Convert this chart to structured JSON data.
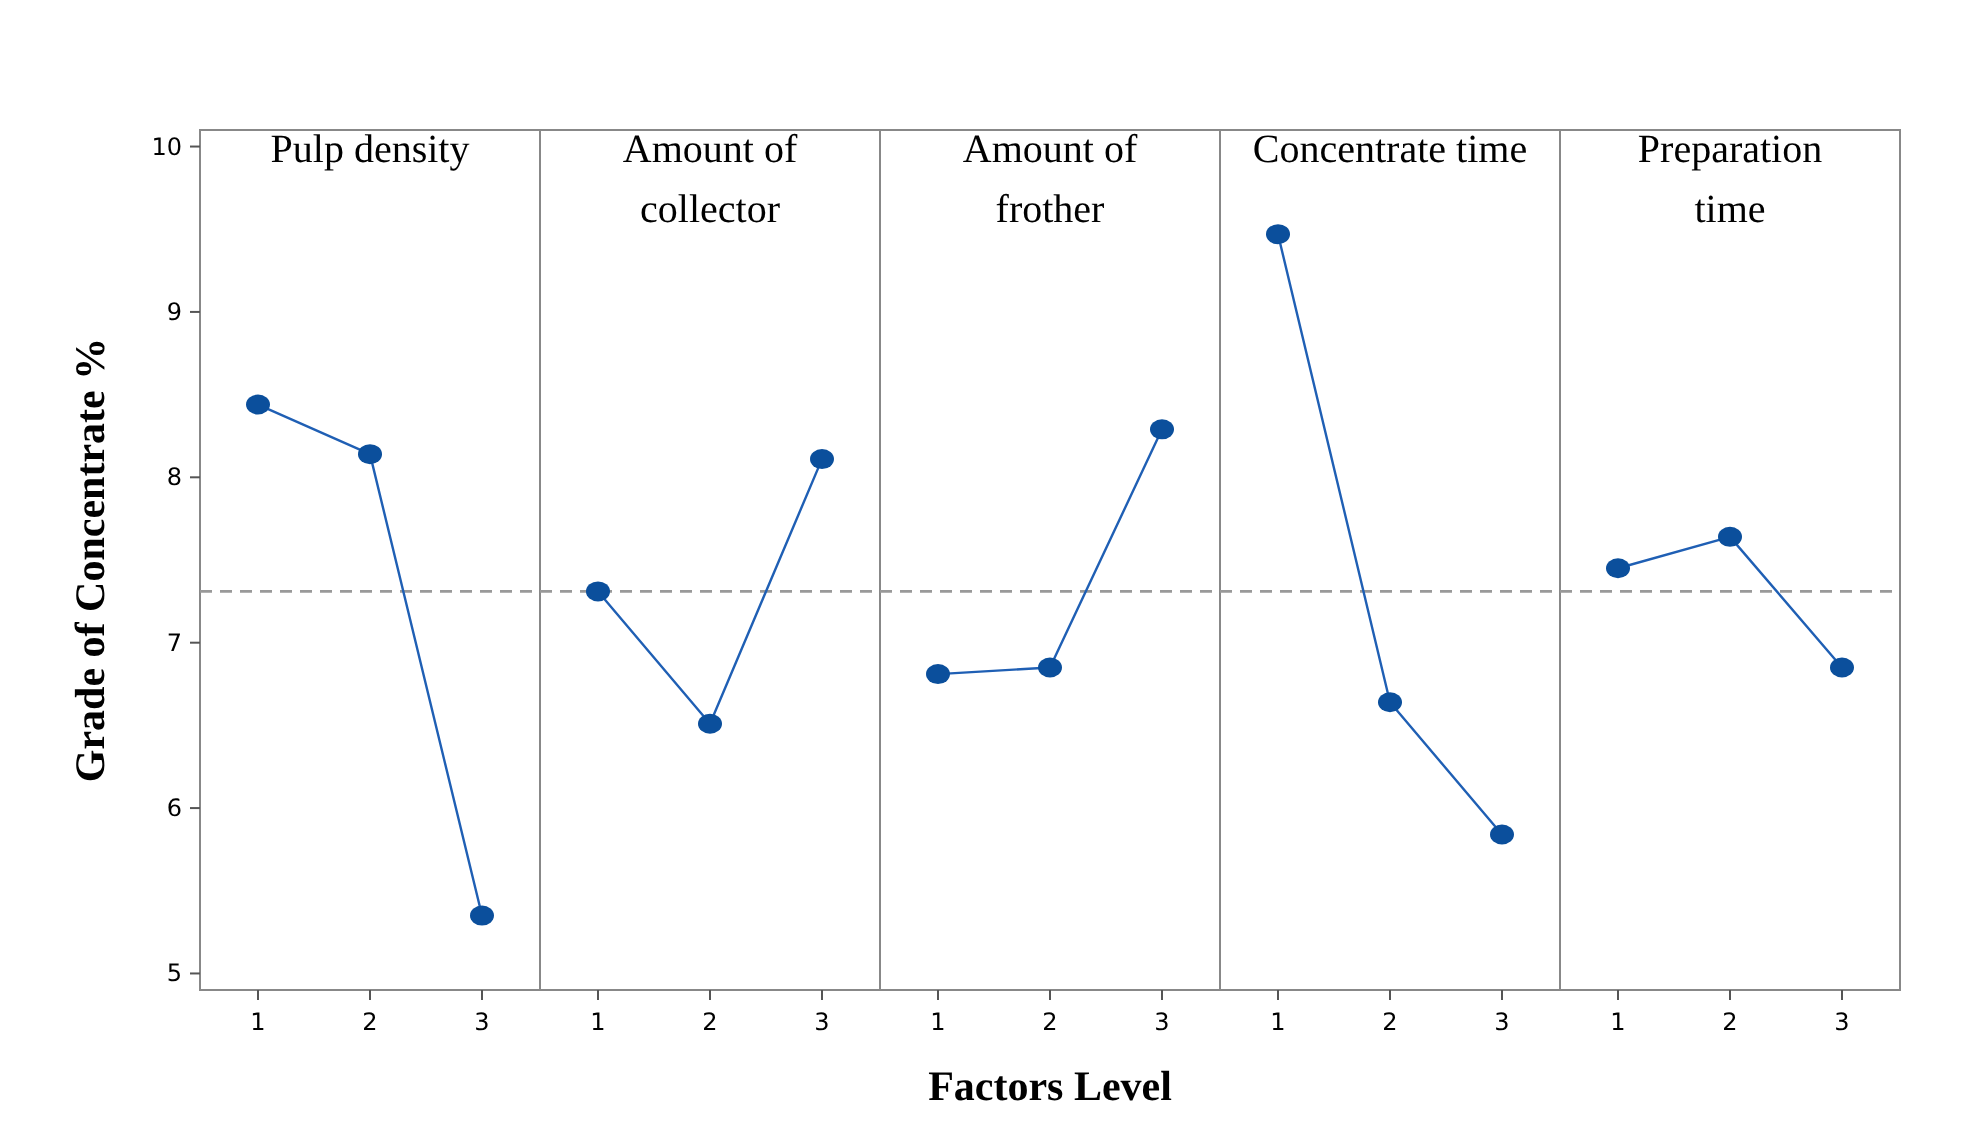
{
  "chart_data": [
    {
      "type": "line",
      "title": "Pulp density",
      "ylabel": "Grade of Concentrate %",
      "categories": [
        "1",
        "2",
        "3"
      ],
      "series": [
        {
          "color": "#1f5fb4",
          "values": [
            8.44,
            8.14,
            5.35
          ]
        }
      ],
      "ylim": [
        4.9,
        10.1
      ],
      "yticks": [
        5,
        6,
        7,
        8,
        9,
        10
      ],
      "ref_lines": [
        {
          "axis": "y",
          "value": 7.31,
          "color": "#999999",
          "line_style": "dashed"
        }
      ],
      "marker": "circle"
    },
    {
      "type": "line",
      "title": "Amount of\ncollector",
      "categories": [
        "1",
        "2",
        "3"
      ],
      "series": [
        {
          "color": "#1f5fb4",
          "values": [
            7.31,
            6.51,
            8.11
          ]
        }
      ],
      "ylim": [
        4.9,
        10.1
      ],
      "tick_labels": "x",
      "ref_lines": [
        {
          "axis": "y",
          "value": 7.31,
          "color": "#999999",
          "line_style": "dashed"
        }
      ],
      "marker": "circle"
    },
    {
      "type": "line",
      "title": "Amount of\nfrother",
      "xlabel": "Factors Level",
      "categories": [
        "1",
        "2",
        "3"
      ],
      "series": [
        {
          "color": "#1f5fb4",
          "values": [
            6.81,
            6.85,
            8.29
          ]
        }
      ],
      "ylim": [
        4.9,
        10.1
      ],
      "tick_labels": "x",
      "ref_lines": [
        {
          "axis": "y",
          "value": 7.31,
          "color": "#999999",
          "line_style": "dashed"
        }
      ],
      "marker": "circle"
    },
    {
      "type": "line",
      "title": "Concentrate time",
      "categories": [
        "1",
        "2",
        "3"
      ],
      "series": [
        {
          "color": "#1f5fb4",
          "values": [
            9.47,
            6.64,
            5.84
          ]
        }
      ],
      "ylim": [
        4.9,
        10.1
      ],
      "tick_labels": "x",
      "ref_lines": [
        {
          "axis": "y",
          "value": 7.31,
          "color": "#999999",
          "line_style": "dashed"
        }
      ],
      "marker": "circle"
    },
    {
      "type": "line",
      "title": "Preparation\ntime",
      "categories": [
        "1",
        "2",
        "3"
      ],
      "series": [
        {
          "color": "#1f5fb4",
          "values": [
            7.45,
            7.64,
            6.85
          ]
        }
      ],
      "ylim": [
        4.9,
        10.1
      ],
      "tick_labels": "x",
      "ref_lines": [
        {
          "axis": "y",
          "value": 7.31,
          "color": "#999999",
          "line_style": "dashed"
        }
      ],
      "marker": "circle"
    }
  ]
}
